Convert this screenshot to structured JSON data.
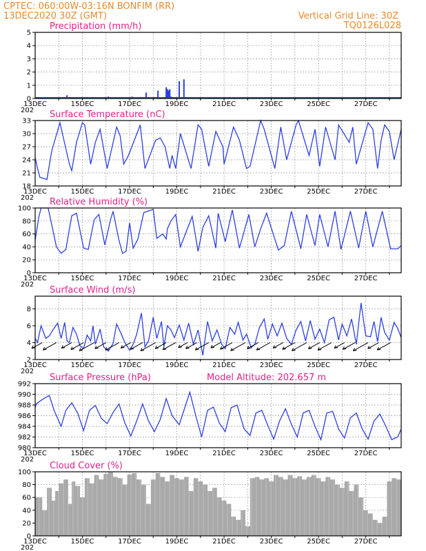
{
  "header": {
    "left_line1": "CPTEC:   060:00W-03:16N   BONFIM (RR)",
    "left_line2": "13DEC2020 30Z (GMT)",
    "right_line1": "Vertical Grid Line: 30Z",
    "right_line2": "TQ0126L028"
  },
  "x_axis": {
    "labels": [
      "13DEC",
      "15DEC",
      "17DEC",
      "19DEC",
      "21DEC",
      "23DEC",
      "25DEC",
      "27DEC"
    ],
    "year_stub": "202"
  },
  "colors": {
    "header": "#e8892a",
    "title": "#e0208a",
    "series": "#2b3fe0",
    "cloud": "#a9a9a9"
  },
  "chart_data": [
    {
      "type": "bar",
      "title": "Precipitation (mm/h)",
      "ylim": [
        0,
        5
      ],
      "yticks": [
        0,
        1,
        2,
        3,
        4,
        5
      ],
      "x_days": [
        1.35,
        2.5,
        3.1,
        3.2,
        3.4,
        4.1,
        4.7,
        5.2,
        5.55,
        5.6,
        5.65,
        5.7,
        5.75,
        6.1,
        6.3,
        7.0,
        8.0,
        9.6
      ],
      "values": [
        0.25,
        0.1,
        0.15,
        0.1,
        0.1,
        0.15,
        0.45,
        0.6,
        0.85,
        0.7,
        0.6,
        0.7,
        0.15,
        1.3,
        1.45,
        0.1,
        0.05,
        0.05
      ]
    },
    {
      "type": "line",
      "title": "Surface Temperature (nC)",
      "ylim": [
        18,
        33
      ],
      "yticks": [
        18,
        21,
        24,
        27,
        30,
        33
      ],
      "series": [
        {
          "x_days": [
            0,
            0.1,
            0.2,
            0.5,
            0.7,
            1.05,
            1.45,
            1.55,
            1.75,
            2.0,
            2.1,
            2.35,
            2.55,
            2.75,
            3.05,
            3.45,
            3.6,
            3.75,
            3.95,
            4.45,
            4.65,
            5.1,
            5.3,
            5.5,
            5.7,
            5.8,
            5.95,
            6.15,
            6.6,
            6.9,
            7.05,
            7.35,
            7.65,
            7.95,
            8.0,
            8.4,
            8.65,
            8.95,
            9.1,
            9.55,
            9.7,
            10.15,
            10.4,
            10.65,
            11.05,
            11.15,
            11.6,
            11.85,
            12.05,
            12.3,
            12.7,
            12.85,
            13.3,
            13.45,
            13.6,
            14.1,
            14.3,
            14.5,
            14.65,
            14.8,
            15.0,
            15.2,
            15.5
          ],
          "values": [
            24.5,
            22,
            20,
            19.5,
            26,
            32.5,
            23,
            21.5,
            28,
            32.5,
            32,
            23,
            28,
            31,
            22,
            31.5,
            29.5,
            23,
            25,
            32,
            22,
            28.5,
            29,
            27,
            22,
            25,
            22,
            30,
            22,
            32,
            31,
            22.5,
            30.5,
            27,
            23,
            31.5,
            28.5,
            22,
            22.5,
            33,
            31,
            22,
            31.5,
            24,
            32,
            33,
            25,
            31,
            22.5,
            31.5,
            24,
            32,
            28,
            31.5,
            23,
            32.5,
            31,
            22,
            28.5,
            32,
            30.5,
            24,
            31
          ]
        }
      ]
    },
    {
      "type": "line",
      "title": "Relative Humidity (%)",
      "ylim": [
        0,
        100
      ],
      "yticks": [
        0,
        20,
        40,
        60,
        80,
        100
      ],
      "series": [
        {
          "x_days": [
            0,
            0.15,
            0.25,
            0.55,
            0.9,
            1.1,
            1.3,
            1.55,
            1.75,
            2.05,
            2.25,
            2.5,
            2.7,
            2.95,
            3.2,
            3.3,
            3.55,
            3.7,
            3.85,
            4.0,
            4.15,
            4.35,
            4.6,
            5.0,
            5.15,
            5.4,
            5.55,
            5.6,
            5.75,
            5.95,
            6.15,
            6.65,
            6.9,
            7.1,
            7.35,
            7.65,
            7.75,
            8.05,
            8.35,
            8.65,
            9.05,
            9.3,
            9.55,
            9.8,
            10.3,
            10.55,
            10.85,
            11.25,
            11.5,
            11.85,
            12.05,
            12.4,
            12.7,
            12.95,
            13.35,
            13.7,
            14.0,
            14.3,
            14.7,
            15.05,
            15.35,
            15.5
          ],
          "values": [
            50,
            85,
            100,
            100,
            40,
            30,
            36,
            88,
            92,
            38,
            36,
            82,
            90,
            43,
            83,
            95,
            50,
            30,
            33,
            77,
            38,
            52,
            93,
            98,
            53,
            60,
            52,
            68,
            80,
            90,
            40,
            87,
            33,
            70,
            88,
            38,
            92,
            48,
            97,
            38,
            90,
            40,
            68,
            92,
            35,
            42,
            95,
            37,
            90,
            42,
            90,
            40,
            95,
            36,
            95,
            38,
            95,
            40,
            95,
            37,
            37,
            42
          ]
        }
      ]
    },
    {
      "type": "line",
      "title": "Surface Wind (m/s)",
      "ylim": [
        2,
        9.5
      ],
      "yticks": [
        2,
        4,
        6,
        8
      ],
      "series": [
        {
          "x_days": [
            0,
            0.1,
            0.25,
            0.45,
            0.6,
            0.75,
            0.95,
            1.1,
            1.25,
            1.35,
            1.45,
            1.6,
            1.75,
            1.9,
            2.05,
            2.2,
            2.35,
            2.45,
            2.55,
            2.75,
            2.9,
            3.1,
            3.3,
            3.45,
            3.65,
            3.8,
            4.0,
            4.15,
            4.3,
            4.5,
            4.65,
            4.8,
            5.0,
            5.15,
            5.35,
            5.45,
            5.6,
            5.75,
            5.9,
            6.1,
            6.3,
            6.5,
            6.7,
            6.9,
            7.1,
            7.3,
            7.5,
            7.7,
            7.9,
            8.05,
            8.25,
            8.45,
            8.6,
            8.8,
            8.95,
            9.15,
            9.3,
            9.5,
            9.7,
            9.85,
            10.05,
            10.25,
            10.45,
            10.65,
            10.85,
            11.05,
            11.25,
            11.45,
            11.65,
            11.85,
            12.05,
            12.25,
            12.45,
            12.65,
            12.85,
            13.0,
            13.2,
            13.4,
            13.6,
            13.8,
            14.0,
            14.2,
            14.35,
            14.5,
            14.65,
            14.8,
            15.0,
            15.2,
            15.35,
            15.5
          ],
          "values": [
            4.5,
            4.0,
            6.0,
            4.5,
            4.8,
            5.5,
            6.3,
            4.5,
            6.4,
            4.2,
            4.0,
            5.8,
            5.0,
            3.6,
            3.3,
            4.9,
            4.2,
            6.0,
            3.8,
            5.6,
            3.5,
            3.0,
            3.9,
            6.2,
            5.0,
            4.0,
            3.1,
            3.8,
            5.0,
            7.5,
            3.5,
            4.2,
            7.0,
            4.5,
            6.5,
            3.5,
            6.0,
            5.5,
            4.6,
            6.1,
            4.3,
            6.3,
            3.8,
            5.5,
            2.5,
            6.5,
            4.2,
            5.5,
            3.8,
            3.3,
            5.8,
            5.0,
            6.4,
            4.3,
            5.0,
            3.4,
            3.8,
            5.8,
            6.8,
            4.4,
            6.2,
            4.8,
            6.3,
            4.5,
            3.8,
            5.5,
            6.5,
            4.2,
            6.6,
            4.4,
            5.6,
            4.0,
            6.7,
            7.0,
            4.3,
            6.2,
            4.8,
            6.8,
            3.8,
            8.7,
            4.8,
            4.7,
            6.5,
            4.1,
            7.0,
            5.2,
            4.3,
            6.4,
            5.7,
            4.6
          ]
        }
      ],
      "arrow_days": [
        0.3,
        0.9,
        1.55,
        2.05,
        2.5,
        3.0,
        3.55,
        4.05,
        4.55,
        5.1,
        5.55,
        5.95,
        6.45,
        6.85,
        7.35,
        7.85,
        8.35,
        8.9,
        9.45,
        9.95,
        10.5,
        11.0,
        11.5,
        12.05,
        12.55,
        13.1,
        13.55,
        14.1,
        14.55,
        15.05
      ]
    },
    {
      "type": "line",
      "title": "Surface Pressure (hPa)",
      "annotation": "Model Altitude: 202.657 m",
      "ylim": [
        980,
        992
      ],
      "yticks": [
        980,
        982,
        984,
        986,
        988,
        990,
        992
      ],
      "series": [
        {
          "x_days": [
            0,
            0.05,
            0.2,
            0.4,
            0.6,
            0.8,
            1.1,
            1.3,
            1.55,
            1.8,
            2.05,
            2.3,
            2.55,
            2.8,
            3.05,
            3.3,
            3.55,
            3.8,
            4.05,
            4.3,
            4.55,
            4.8,
            5.05,
            5.3,
            5.55,
            5.8,
            6.1,
            6.3,
            6.55,
            6.8,
            7.05,
            7.3,
            7.55,
            7.8,
            8.05,
            8.3,
            8.55,
            8.85,
            9.1,
            9.35,
            9.6,
            9.85,
            10.1,
            10.35,
            10.6,
            10.85,
            11.1,
            11.35,
            11.6,
            11.85,
            12.1,
            12.35,
            12.6,
            12.85,
            13.1,
            13.35,
            13.6,
            13.85,
            14.1,
            14.35,
            14.6,
            14.85,
            15.1,
            15.35,
            15.5
          ],
          "values": [
            987.5,
            988.2,
            988.7,
            989.3,
            989.8,
            987,
            984,
            987,
            988.4,
            986.5,
            983.2,
            987,
            987.9,
            985.5,
            984.5,
            986.6,
            988.2,
            984.6,
            982.2,
            985,
            988.2,
            985,
            983,
            985.3,
            989.2,
            986,
            984.3,
            987,
            990.4,
            986,
            982,
            987,
            987.6,
            984.6,
            983,
            987.5,
            988,
            983.5,
            982.3,
            986.5,
            987,
            984.2,
            981.6,
            985,
            987.3,
            984.4,
            982,
            986.5,
            987,
            984,
            981.5,
            986.5,
            986.8,
            983.5,
            981.8,
            985.6,
            986.5,
            983.5,
            981.6,
            985,
            986.3,
            984,
            981.5,
            982,
            983.5
          ]
        }
      ]
    },
    {
      "type": "area",
      "title": "Cloud Cover (%)",
      "ylim": [
        0,
        100
      ],
      "yticks": [
        0,
        20,
        40,
        60,
        80,
        100
      ],
      "x_days": [
        0,
        0.3,
        0.5,
        0.7,
        0.85,
        1.0,
        1.2,
        1.4,
        1.55,
        1.7,
        1.9,
        2.1,
        2.3,
        2.5,
        2.7,
        2.9,
        3.1,
        3.3,
        3.5,
        3.7,
        3.9,
        4.1,
        4.3,
        4.5,
        4.7,
        4.9,
        5.1,
        5.3,
        5.5,
        5.7,
        5.9,
        6.1,
        6.3,
        6.5,
        6.7,
        6.9,
        7.1,
        7.3,
        7.5,
        7.7,
        7.9,
        8.1,
        8.3,
        8.5,
        8.7,
        8.9,
        9.1,
        9.3,
        9.5,
        9.7,
        9.9,
        10.1,
        10.3,
        10.5,
        10.7,
        10.9,
        11.1,
        11.3,
        11.5,
        11.7,
        11.9,
        12.1,
        12.3,
        12.5,
        12.7,
        12.9,
        13.1,
        13.3,
        13.5,
        13.7,
        13.9,
        14.1,
        14.3,
        14.5,
        14.7,
        14.9,
        15.1,
        15.3,
        15.5
      ],
      "values": [
        60,
        40,
        75,
        55,
        70,
        82,
        88,
        50,
        85,
        78,
        60,
        90,
        82,
        95,
        88,
        97,
        99,
        92,
        90,
        80,
        96,
        98,
        88,
        80,
        50,
        88,
        98,
        92,
        85,
        95,
        90,
        88,
        92,
        70,
        90,
        85,
        80,
        70,
        75,
        60,
        55,
        50,
        30,
        25,
        40,
        15,
        90,
        92,
        88,
        90,
        85,
        95,
        92,
        88,
        95,
        90,
        93,
        88,
        92,
        95,
        90,
        85,
        92,
        88,
        80,
        75,
        85,
        70,
        80,
        60,
        40,
        35,
        25,
        20,
        30,
        85,
        90,
        88,
        92
      ]
    }
  ]
}
